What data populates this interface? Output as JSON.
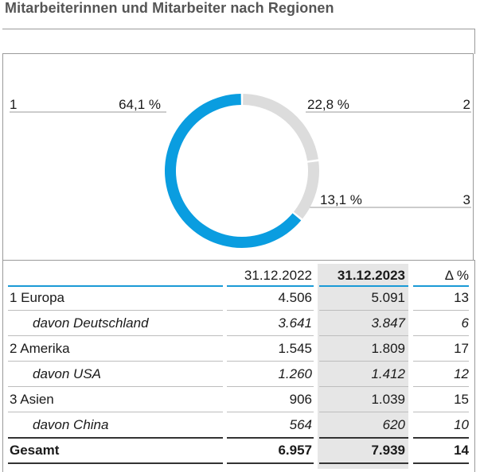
{
  "title": "Mitarbeiterinnen und Mitarbeiter nach Regionen",
  "colors": {
    "accent": "#0a9de0",
    "muted": "#dcdcdc",
    "rule_blue": "#1a9ad6"
  },
  "chart_data": {
    "type": "pie",
    "style": "donut",
    "slices": [
      {
        "id": "1",
        "label": "64,1 %",
        "value": 64.1,
        "color": "#0a9de0"
      },
      {
        "id": "2",
        "label": "22,8 %",
        "value": 22.8,
        "color": "#dcdcdc"
      },
      {
        "id": "3",
        "label": "13,1 %",
        "value": 13.1,
        "color": "#dcdcdc"
      }
    ]
  },
  "table": {
    "headers": [
      "",
      "31.12.2022",
      "31.12.2023",
      "Δ %"
    ],
    "rows": [
      {
        "label": "1 Europa",
        "v2022": "4.506",
        "v2023": "5.091",
        "delta": "13",
        "italic": false,
        "bold": false
      },
      {
        "label": "davon Deutschland",
        "v2022": "3.641",
        "v2023": "3.847",
        "delta": "6",
        "italic": true,
        "bold": false
      },
      {
        "label": "2 Amerika",
        "v2022": "1.545",
        "v2023": "1.809",
        "delta": "17",
        "italic": false,
        "bold": false
      },
      {
        "label": "davon USA",
        "v2022": "1.260",
        "v2023": "1.412",
        "delta": "12",
        "italic": true,
        "bold": false
      },
      {
        "label": "3 Asien",
        "v2022": "906",
        "v2023": "1.039",
        "delta": "15",
        "italic": false,
        "bold": false
      },
      {
        "label": "davon China",
        "v2022": "564",
        "v2023": "620",
        "delta": "10",
        "italic": true,
        "bold": false
      },
      {
        "label": "Gesamt",
        "v2022": "6.957",
        "v2023": "7.939",
        "delta": "14",
        "italic": false,
        "bold": true
      }
    ]
  }
}
